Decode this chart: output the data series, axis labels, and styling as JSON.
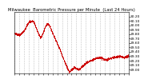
{
  "title": "Milwaukee  Barometric Pressure per Minute  (Last 24 Hours)",
  "bg_color": "#ffffff",
  "plot_bg_color": "#ffffff",
  "line_color": "#cc0000",
  "grid_color": "#bbbbbb",
  "text_color": "#000000",
  "ylim": [
    28.9,
    30.3
  ],
  "yticks": [
    29.0,
    29.1,
    29.2,
    29.3,
    29.4,
    29.5,
    29.6,
    29.7,
    29.8,
    29.9,
    30.0,
    30.1,
    30.2
  ],
  "x_key": [
    0,
    60,
    120,
    150,
    180,
    210,
    240,
    270,
    300,
    330,
    360,
    390,
    420,
    450,
    480,
    510,
    540,
    570,
    600,
    630,
    660,
    690,
    720,
    750,
    780,
    810,
    840,
    870,
    900,
    960,
    1020,
    1080,
    1140,
    1200,
    1260,
    1320,
    1380,
    1440
  ],
  "y_key": [
    29.82,
    29.78,
    29.88,
    30.0,
    30.08,
    30.1,
    30.08,
    29.95,
    29.8,
    29.72,
    29.85,
    30.0,
    30.05,
    29.95,
    29.82,
    29.7,
    29.58,
    29.45,
    29.3,
    29.18,
    29.05,
    28.95,
    29.0,
    29.05,
    29.02,
    29.0,
    29.05,
    29.1,
    29.15,
    29.2,
    29.25,
    29.28,
    29.22,
    29.25,
    29.28,
    29.3,
    29.28,
    29.3
  ],
  "markersize": 1.2,
  "num_xticks": 25,
  "xlabel_fontsize": 3.0,
  "ylabel_fontsize": 3.2,
  "title_fontsize": 3.8
}
